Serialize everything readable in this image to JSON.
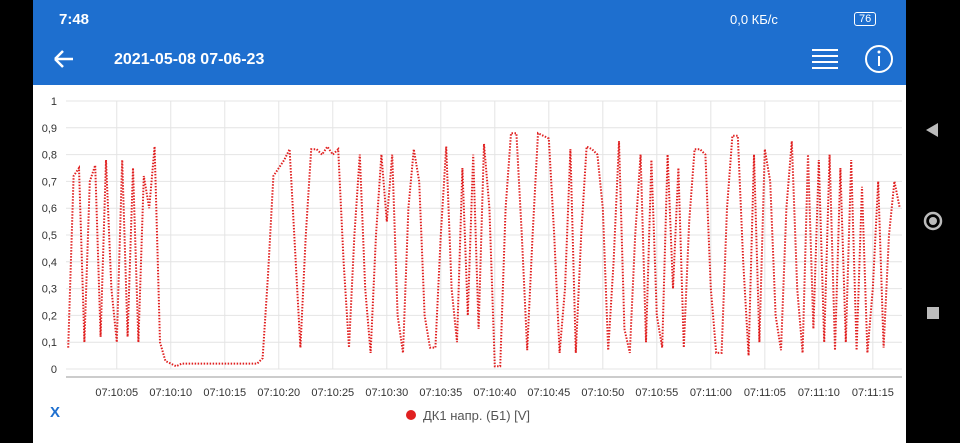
{
  "status_bar": {
    "time": "7:48",
    "speed": "0,0 КБ/с",
    "battery": "76"
  },
  "app_bar": {
    "title": "2021-05-08 07-06-23"
  },
  "chart_data": {
    "type": "line",
    "x_axis_label": "X",
    "x": [
      0.5,
      1,
      1.5,
      2,
      2.5,
      3,
      3.5,
      4,
      4.5,
      5,
      5.5,
      6,
      6.5,
      7,
      7.5,
      8,
      8.5,
      9,
      9.5,
      10,
      10.5,
      11,
      11.5,
      12,
      12.5,
      13,
      13.5,
      14,
      14.5,
      15,
      15.5,
      16,
      16.5,
      17,
      17.5,
      18,
      18.5,
      19,
      19.5,
      20,
      20.5,
      21,
      21.5,
      22,
      22.5,
      23,
      23.5,
      24,
      24.5,
      25,
      25.5,
      26,
      26.5,
      27,
      27.5,
      28,
      28.5,
      29,
      29.5,
      30,
      30.5,
      31,
      31.5,
      32,
      32.5,
      33,
      33.5,
      34,
      34.5,
      35,
      35.5,
      36,
      36.5,
      37,
      37.5,
      38,
      38.5,
      39,
      39.5,
      40,
      40.5,
      41,
      41.5,
      42,
      42.5,
      43,
      43.5,
      44,
      44.5,
      45,
      45.5,
      46,
      46.5,
      47,
      47.5,
      48,
      48.5,
      49,
      49.5,
      50,
      50.5,
      51,
      51.5,
      52,
      52.5,
      53,
      53.5,
      54,
      54.5,
      55,
      55.5,
      56,
      56.5,
      57,
      57.5,
      58,
      58.5,
      59,
      59.5,
      60,
      60.5,
      61,
      61.5,
      62,
      62.5,
      63,
      63.5,
      64,
      64.5,
      65,
      65.5,
      66,
      66.5,
      67,
      67.5,
      68,
      68.5,
      69,
      69.5,
      70,
      70.5,
      71,
      71.5,
      72,
      72.5,
      73,
      73.5,
      74,
      74.5,
      75,
      75.5,
      76,
      76.5,
      77,
      77.5
    ],
    "series": [
      {
        "name": "ДК1 напр. (Б1) [V]",
        "color": "#e02020",
        "values": [
          0.08,
          0.72,
          0.75,
          0.1,
          0.7,
          0.76,
          0.12,
          0.78,
          0.3,
          0.1,
          0.78,
          0.12,
          0.75,
          0.1,
          0.72,
          0.6,
          0.83,
          0.1,
          0.03,
          0.02,
          0.01,
          0.02,
          0.02,
          0.02,
          0.02,
          0.02,
          0.02,
          0.02,
          0.02,
          0.02,
          0.02,
          0.02,
          0.02,
          0.02,
          0.02,
          0.02,
          0.04,
          0.35,
          0.72,
          0.75,
          0.78,
          0.82,
          0.45,
          0.08,
          0.5,
          0.82,
          0.82,
          0.8,
          0.83,
          0.8,
          0.82,
          0.4,
          0.08,
          0.5,
          0.8,
          0.3,
          0.06,
          0.5,
          0.8,
          0.55,
          0.8,
          0.2,
          0.06,
          0.6,
          0.82,
          0.7,
          0.2,
          0.08,
          0.08,
          0.5,
          0.83,
          0.3,
          0.1,
          0.75,
          0.2,
          0.8,
          0.15,
          0.84,
          0.6,
          0.01,
          0.01,
          0.6,
          0.88,
          0.88,
          0.5,
          0.07,
          0.5,
          0.88,
          0.87,
          0.86,
          0.5,
          0.06,
          0.3,
          0.82,
          0.06,
          0.5,
          0.83,
          0.82,
          0.8,
          0.6,
          0.07,
          0.4,
          0.85,
          0.15,
          0.06,
          0.5,
          0.8,
          0.1,
          0.78,
          0.2,
          0.08,
          0.8,
          0.3,
          0.75,
          0.08,
          0.55,
          0.82,
          0.82,
          0.8,
          0.3,
          0.06,
          0.06,
          0.6,
          0.87,
          0.87,
          0.4,
          0.05,
          0.8,
          0.1,
          0.82,
          0.7,
          0.2,
          0.07,
          0.6,
          0.85,
          0.3,
          0.06,
          0.8,
          0.15,
          0.78,
          0.1,
          0.8,
          0.07,
          0.75,
          0.1,
          0.78,
          0.07,
          0.68,
          0.06,
          0.3,
          0.7,
          0.08,
          0.5,
          0.7,
          0.6
        ]
      }
    ],
    "xlim": [
      0.3,
      77.7
    ],
    "ylim": [
      0,
      1
    ],
    "xticks": [
      {
        "value": 5,
        "label": "07:10:05"
      },
      {
        "value": 10,
        "label": "07:10:10"
      },
      {
        "value": 15,
        "label": "07:10:15"
      },
      {
        "value": 20,
        "label": "07:10:20"
      },
      {
        "value": 25,
        "label": "07:10:25"
      },
      {
        "value": 30,
        "label": "07:10:30"
      },
      {
        "value": 35,
        "label": "07:10:35"
      },
      {
        "value": 40,
        "label": "07:10:40"
      },
      {
        "value": 45,
        "label": "07:10:45"
      },
      {
        "value": 50,
        "label": "07:10:50"
      },
      {
        "value": 55,
        "label": "07:10:55"
      },
      {
        "value": 60,
        "label": "07:11:00"
      },
      {
        "value": 65,
        "label": "07:11:05"
      },
      {
        "value": 70,
        "label": "07:11:10"
      },
      {
        "value": 75,
        "label": "07:11:15"
      }
    ],
    "yticks": [
      0,
      {
        "value": 0.1,
        "label": "0,1"
      },
      {
        "value": 0.2,
        "label": "0,2"
      },
      {
        "value": 0.3,
        "label": "0,3"
      },
      {
        "value": 0.4,
        "label": "0,4"
      },
      {
        "value": 0.5,
        "label": "0,5"
      },
      {
        "value": 0.6,
        "label": "0,6"
      },
      {
        "value": 0.7,
        "label": "0,7"
      },
      {
        "value": 0.8,
        "label": "0,8"
      },
      {
        "value": 0.9,
        "label": "0,9"
      },
      1
    ],
    "grid": true
  }
}
